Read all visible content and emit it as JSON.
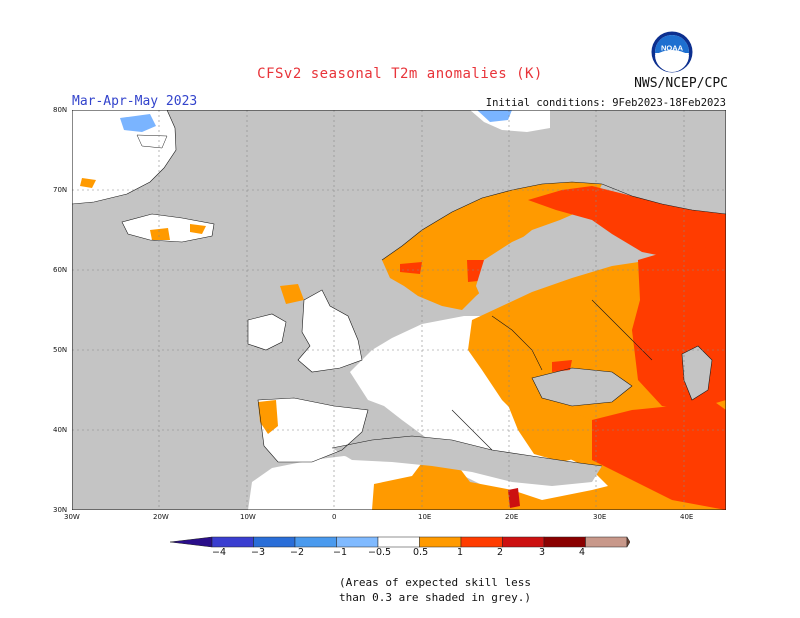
{
  "header": {
    "title": "CFSv2 seasonal T2m anomalies (K)",
    "agency": "NWS/NCEP/CPC",
    "season": "Mar-Apr-May 2023",
    "initial_conditions": "Initial conditions: 9Feb2023-18Feb2023",
    "logo_text": "NOAA"
  },
  "map": {
    "lat_labels": [
      "80N",
      "70N",
      "60N",
      "50N",
      "40N",
      "30N"
    ],
    "lon_labels": [
      "30W",
      "20W",
      "10W",
      "0",
      "10E",
      "20E",
      "30E",
      "40E"
    ],
    "colors": {
      "ocean_grey": "#c4c4c4",
      "land_white": "#ffffff",
      "warm_0_5_1": "#ff9a00",
      "warm_1_2": "#ff3c00",
      "warm_2_3": "#cc1010",
      "cool_m1_m0_5": "#7ab4ff"
    }
  },
  "legend": {
    "labels": [
      "−4",
      "−3",
      "−2",
      "−1",
      "−0.5",
      "0.5",
      "1",
      "2",
      "3",
      "4"
    ],
    "colors": [
      "#2a0e8a",
      "#3a3ed0",
      "#2a6ed8",
      "#4a9aee",
      "#80baff",
      "#ffffff",
      "#ff9a00",
      "#ff3c00",
      "#cc1010",
      "#8a0000",
      "#c8988a",
      "#6e4434"
    ]
  },
  "note": {
    "line1": "(Areas of expected skill less",
    "line2": "than 0.3 are shaded in grey.)"
  }
}
